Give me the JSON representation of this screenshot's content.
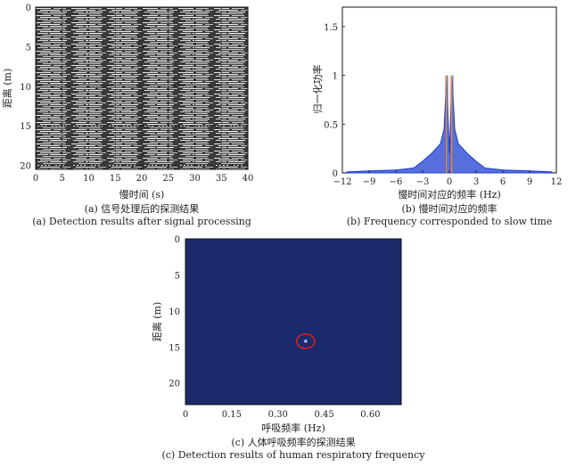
{
  "figure": {
    "captions": {
      "a_cn": "(a) 信号处理后的探测结果",
      "a_en": "(a) Detection results after signal processing",
      "b_cn": "(b) 慢时间对应的频率",
      "b_en": "(b) Frequency corresponded to slow time",
      "c_cn": "(c) 人体呼吸频率的探测结果",
      "c_en": "(c) Detection results of human respiratory frequency"
    }
  },
  "chart_data": [
    {
      "id": "a",
      "type": "heatmap",
      "xlabel": "慢时间 (s)",
      "ylabel": "距离 (m)",
      "xlim": [
        0,
        40
      ],
      "ylim": [
        0,
        20.5
      ],
      "xticks": [
        "0",
        "5",
        "10",
        "15",
        "20",
        "25",
        "30",
        "35",
        "40"
      ],
      "yticks": [
        "0",
        "5",
        "10",
        "15",
        "20"
      ],
      "grid": true,
      "colormap": "gray"
    },
    {
      "id": "b",
      "type": "line",
      "xlabel": "慢时间对应的频率 (Hz)",
      "ylabel": "归一化功率",
      "xlim": [
        -12,
        12
      ],
      "ylim": [
        0,
        1.7
      ],
      "xticks": [
        "−12",
        "−9",
        "−6",
        "−3",
        "0",
        "3",
        "6",
        "9",
        "12"
      ],
      "yticks": [
        "0",
        "0.5",
        "1",
        "1.5"
      ],
      "x": [
        -11.5,
        -9,
        -6,
        -4,
        -3,
        -2,
        -1.5,
        -1,
        -0.6,
        -0.3,
        0,
        0.3,
        0.6,
        1,
        1.5,
        2,
        3,
        4,
        6,
        9,
        11.5
      ],
      "values": [
        0.01,
        0.02,
        0.03,
        0.05,
        0.12,
        0.2,
        0.25,
        0.3,
        0.45,
        1.0,
        0.2,
        1.0,
        0.45,
        0.3,
        0.25,
        0.2,
        0.12,
        0.05,
        0.03,
        0.02,
        0.01
      ],
      "color": "#1f3fd0"
    },
    {
      "id": "c",
      "type": "heatmap",
      "xlabel": "呼吸频率 (Hz)",
      "ylabel": "距离 (m)",
      "xlim": [
        0,
        0.7
      ],
      "ylim": [
        0,
        23
      ],
      "xticks": [
        "0",
        "0.15",
        "0.30",
        "0.45",
        "0.60"
      ],
      "yticks": [
        "0",
        "5",
        "10",
        "15",
        "20"
      ],
      "background": "#1b2a6b",
      "peak": {
        "x": 0.39,
        "y": 14.2
      },
      "marker_color": "#e02020"
    }
  ]
}
